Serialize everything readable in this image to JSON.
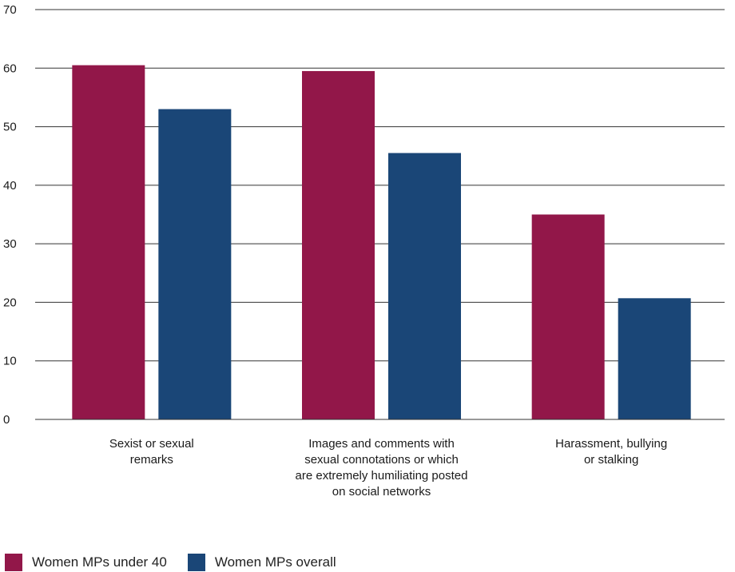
{
  "chart_data": {
    "type": "bar",
    "ylim": [
      0,
      70
    ],
    "yticks": [
      0,
      10,
      20,
      30,
      40,
      50,
      60,
      70
    ],
    "grid": true,
    "legend_position": "bottom-left",
    "categories": [
      [
        "Sexist or sexual",
        "remarks"
      ],
      [
        "Images and comments with",
        "sexual connotations or which",
        "are extremely humiliating posted",
        "on social networks"
      ],
      [
        "Harassment, bullying",
        "or stalking"
      ]
    ],
    "series": [
      {
        "name": "Women MPs under 40",
        "color": "#921749",
        "values": [
          60.5,
          59.5,
          35
        ]
      },
      {
        "name": "Women MPs overall",
        "color": "#1a4677",
        "values": [
          53,
          45.5,
          20.7
        ]
      }
    ]
  }
}
